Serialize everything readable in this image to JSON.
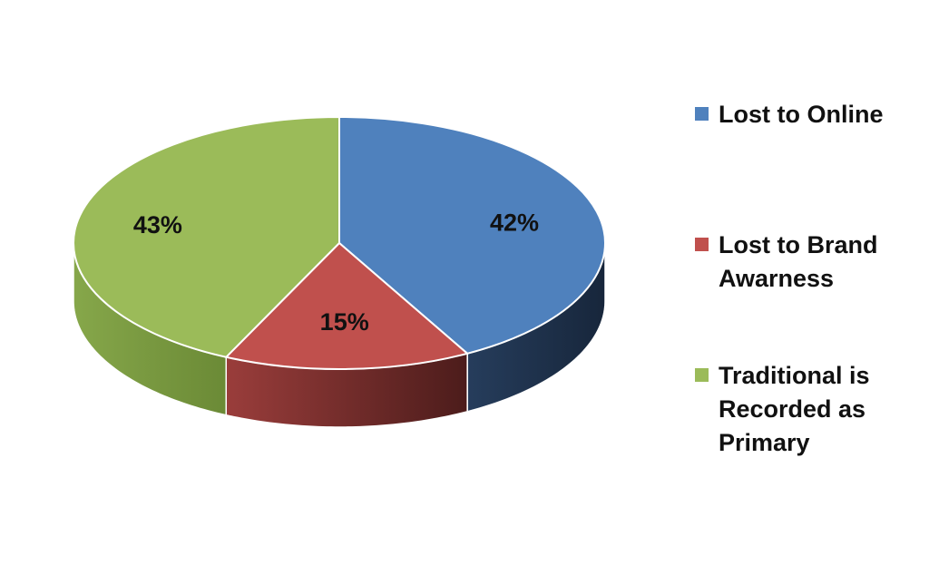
{
  "chart_data": {
    "type": "pie",
    "style": "3d",
    "categories": [
      "Lost to Online",
      "Lost to Brand Awarness",
      "Traditional is Recorded as Primary"
    ],
    "values": [
      42,
      15,
      43
    ],
    "data_labels": [
      "42%",
      "15%",
      "43%"
    ],
    "colors": [
      "#4f81bd",
      "#c0504d",
      "#9bbb59"
    ],
    "legend_position": "right",
    "title": ""
  },
  "legend": {
    "items": [
      {
        "label": "Lost to Online",
        "color": "#4f81bd"
      },
      {
        "label": "Lost to Brand\nAwarness",
        "color": "#c0504d"
      },
      {
        "label": "Traditional is\nRecorded as\nPrimary",
        "color": "#9bbb59"
      }
    ]
  }
}
